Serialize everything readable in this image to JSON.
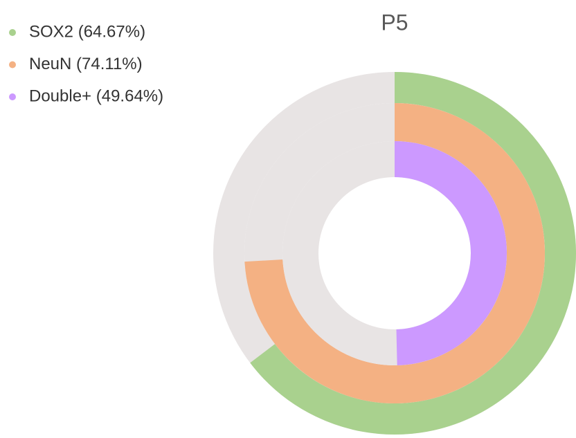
{
  "chart_data": {
    "type": "radial_bar",
    "title": "P5",
    "ylim": [
      0,
      100
    ],
    "series": [
      {
        "name": "SOX2 (64.67%)",
        "color": "#a9d18e",
        "values": [
          64.67
        ]
      },
      {
        "name": "NeuN (74.11%)",
        "color": "#f4b183",
        "values": [
          74.11
        ]
      },
      {
        "name": "Double+ (49.64%)",
        "color": "#cc99ff",
        "values": [
          49.64
        ]
      }
    ]
  }
}
